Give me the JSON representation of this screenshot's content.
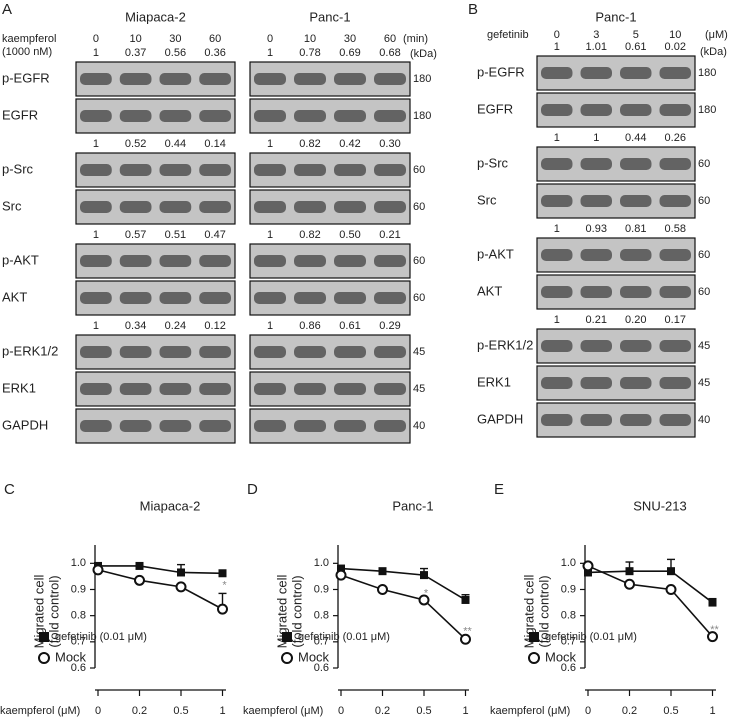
{
  "blots": [
    {
      "letter": "A",
      "treatment": "kaempferol",
      "dose": "(1000 nM)",
      "unit": "(min)",
      "kda_unit": "(kDa)",
      "cell_lines": [
        "Miapaca-2",
        "Panc-1"
      ],
      "lanes": [
        [
          "0",
          "10",
          "30",
          "60"
        ],
        [
          "0",
          "10",
          "30",
          "60"
        ]
      ],
      "rows": [
        {
          "name": "p-EGFR",
          "kda": "180",
          "quant": [
            [
              "1",
              "0.37",
              "0.56",
              "0.36"
            ],
            [
              "1",
              "0.78",
              "0.69",
              "0.68"
            ]
          ]
        },
        {
          "name": "EGFR",
          "kda": "180"
        },
        {
          "name": "p-Src",
          "kda": "60",
          "quant": [
            [
              "1",
              "0.52",
              "0.44",
              "0.14"
            ],
            [
              "1",
              "0.82",
              "0.42",
              "0.30"
            ]
          ]
        },
        {
          "name": "Src",
          "kda": "60"
        },
        {
          "name": "p-AKT",
          "kda": "60",
          "quant": [
            [
              "1",
              "0.57",
              "0.51",
              "0.47"
            ],
            [
              "1",
              "0.82",
              "0.50",
              "0.21"
            ]
          ]
        },
        {
          "name": "AKT",
          "kda": "60"
        },
        {
          "name": "p-ERK1/2",
          "kda": "45",
          "quant": [
            [
              "1",
              "0.34",
              "0.24",
              "0.12"
            ],
            [
              "1",
              "0.86",
              "0.61",
              "0.29"
            ]
          ]
        },
        {
          "name": "ERK1",
          "kda": "45"
        },
        {
          "name": "GAPDH",
          "kda": "40"
        }
      ]
    },
    {
      "letter": "B",
      "treatment": "gefetinib",
      "unit": "(μM)",
      "kda_unit": "(kDa)",
      "cell_lines": [
        "Panc-1"
      ],
      "lanes": [
        [
          "0",
          "3",
          "5",
          "10"
        ]
      ],
      "rows": [
        {
          "name": "p-EGFR",
          "kda": "180",
          "quant": [
            [
              "1",
              "1.01",
              "0.61",
              "0.02"
            ]
          ]
        },
        {
          "name": "EGFR",
          "kda": "180"
        },
        {
          "name": "p-Src",
          "kda": "60",
          "quant": [
            [
              "1",
              "1",
              "0.44",
              "0.26"
            ]
          ]
        },
        {
          "name": "Src",
          "kda": "60"
        },
        {
          "name": "p-AKT",
          "kda": "60",
          "quant": [
            [
              "1",
              "0.93",
              "0.81",
              "0.58"
            ]
          ]
        },
        {
          "name": "AKT",
          "kda": "60"
        },
        {
          "name": "p-ERK1/2",
          "kda": "45",
          "quant": [
            [
              "1",
              "0.21",
              "0.20",
              "0.17"
            ]
          ]
        },
        {
          "name": "ERK1",
          "kda": "45"
        },
        {
          "name": "GAPDH",
          "kda": "40"
        }
      ]
    }
  ],
  "chart_data": [
    {
      "type": "line",
      "letter": "C",
      "title": "Miapaca-2",
      "x_label": "kaempferol (μM)",
      "y_label": [
        "Migrated cell",
        "(fold control)"
      ],
      "categories": [
        "0",
        "0.2",
        "0.5",
        "1"
      ],
      "series": [
        {
          "name": "gefetinib (0.01 μM)",
          "color": "#111111",
          "marker": "square",
          "values": [
            0.99,
            0.99,
            0.965,
            0.962
          ],
          "errors": [
            0.01,
            0.005,
            0.03,
            0.005
          ]
        },
        {
          "name": "Mock",
          "color": "#111111",
          "marker": "circle-open",
          "values": [
            0.975,
            0.935,
            0.91,
            0.825
          ],
          "errors": [
            0.005,
            0.005,
            0.01,
            0.06
          ]
        }
      ],
      "annotations": [
        "*"
      ],
      "ylim": [
        0.6,
        1.07
      ],
      "yticks": [
        0.6,
        0.7,
        0.8,
        0.9,
        {
          "value": 1,
          "label": "1.0"
        }
      ]
    },
    {
      "type": "line",
      "letter": "D",
      "title": "Panc-1",
      "x_label": "kaempferol (μM)",
      "y_label": [
        "Migrated cell",
        "(fold control)"
      ],
      "categories": [
        "0",
        "0.2",
        "0.5",
        "1"
      ],
      "series": [
        {
          "name": "gefetinib (0.01 μM)",
          "color": "#111111",
          "marker": "square",
          "values": [
            0.98,
            0.97,
            0.955,
            0.86
          ],
          "errors": [
            0.01,
            0.005,
            0.025,
            0.02
          ]
        },
        {
          "name": "Mock",
          "color": "#111111",
          "marker": "circle-open",
          "values": [
            0.955,
            0.9,
            0.86,
            0.71
          ],
          "errors": [
            0.005,
            0.005,
            0.005,
            0.005
          ]
        }
      ],
      "annotations": [
        "*",
        "**"
      ],
      "ylim": [
        0.6,
        1.07
      ],
      "yticks": [
        0.6,
        0.7,
        0.8,
        0.9,
        {
          "value": 1,
          "label": "1.0"
        }
      ]
    },
    {
      "type": "line",
      "letter": "E",
      "title": "SNU-213",
      "x_label": "kaempferol (μM)",
      "y_label": [
        "Migrated cell",
        "(fold control)"
      ],
      "categories": [
        "0",
        "0.2",
        "0.5",
        "1"
      ],
      "series": [
        {
          "name": "gefetinib (0.01 μM)",
          "color": "#111111",
          "marker": "square",
          "values": [
            0.965,
            0.97,
            0.97,
            0.85
          ],
          "errors": [
            0.01,
            0.035,
            0.045,
            0.015
          ]
        },
        {
          "name": "Mock",
          "color": "#111111",
          "marker": "circle-open",
          "values": [
            0.99,
            0.92,
            0.9,
            0.72
          ],
          "errors": [
            0.005,
            0.005,
            0.005,
            0.005
          ]
        }
      ],
      "annotations": [
        "**"
      ],
      "ylim": [
        0.6,
        1.07
      ],
      "yticks": [
        0.6,
        0.7,
        0.8,
        0.9,
        {
          "value": 1,
          "label": "1.0"
        }
      ]
    }
  ]
}
